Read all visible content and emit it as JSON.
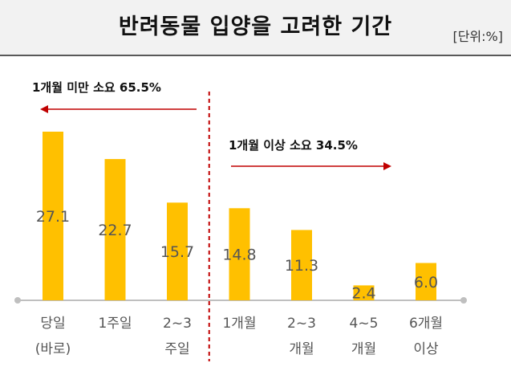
{
  "header": {
    "title": "반려동물 입양을 고려한 기간",
    "unit": "[단위:%]"
  },
  "annotations": {
    "left": "1개월 미만 소요 65.5%",
    "right": "1개월 이상 소요 34.5%"
  },
  "colors": {
    "bar": "#FFC000",
    "arrow": "#C00000",
    "divider": "#C00000",
    "axis": "#BFBFBF",
    "header_bg": "#F2F2F2"
  },
  "chart_data": {
    "type": "bar",
    "categories": [
      [
        "당일",
        "(바로)"
      ],
      [
        "1주일"
      ],
      [
        "2~3",
        "주일"
      ],
      [
        "1개월"
      ],
      [
        "2~3",
        "개월"
      ],
      [
        "4~5",
        "개월"
      ],
      [
        "6개월",
        "이상"
      ]
    ],
    "values": [
      27.1,
      22.7,
      15.7,
      14.8,
      11.3,
      2.4,
      6.0
    ],
    "value_labels": [
      "27.1",
      "22.7",
      "15.7",
      "14.8",
      "11.3",
      "2.4",
      "6.0"
    ],
    "ylim": [
      0,
      30
    ],
    "grid": false,
    "divider_after_index": 2
  }
}
